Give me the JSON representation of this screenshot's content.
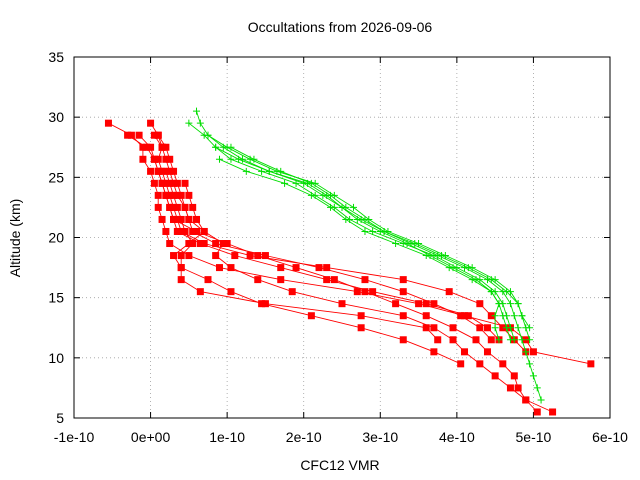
{
  "chart_data": {
    "type": "line",
    "title": "Occultations from 2026-09-06",
    "xlabel": "CFC12 VMR",
    "ylabel": "Altitude (km)",
    "xlim": [
      -1e-10,
      6e-10
    ],
    "ylim": [
      5,
      35
    ],
    "x_ticks": [
      -1e-10,
      0,
      1e-10,
      2e-10,
      3e-10,
      4e-10,
      5e-10,
      6e-10
    ],
    "x_tick_labels": [
      "-1e-10",
      "0e+00",
      "1e-10",
      "2e-10",
      "3e-10",
      "4e-10",
      "5e-10",
      "6e-10"
    ],
    "y_ticks": [
      5,
      10,
      15,
      20,
      25,
      30,
      35
    ],
    "y_tick_labels": [
      "5",
      "10",
      "15",
      "20",
      "25",
      "30",
      "35"
    ],
    "grid": true,
    "legend": "none",
    "colors": {
      "red": "#ff0000",
      "green": "#00dd00",
      "grid": "#a0a0a0"
    },
    "series": [
      {
        "marker": "square",
        "color": "#ff0000",
        "points": [
          [
            -5.5e-11,
            29.5
          ],
          [
            -2.5e-11,
            28.5
          ],
          [
            -1e-11,
            27.5
          ],
          [
            -1e-11,
            26.5
          ],
          [
            0.0,
            25.5
          ],
          [
            5e-12,
            24.5
          ],
          [
            1e-11,
            23.5
          ],
          [
            1e-11,
            22.5
          ],
          [
            1.5e-11,
            21.5
          ],
          [
            2e-11,
            20.5
          ],
          [
            2.5e-11,
            19.5
          ],
          [
            5e-11,
            18.5
          ],
          [
            9e-11,
            17.5
          ],
          [
            1.7e-10,
            16.5
          ],
          [
            2.7e-10,
            15.5
          ],
          [
            3.5e-10,
            14.5
          ],
          [
            4.1e-10,
            13.5
          ],
          [
            4.7e-10,
            12.5
          ],
          [
            4.9e-10,
            11.5
          ],
          [
            5e-10,
            10.5
          ],
          [
            5.75e-10,
            9.5
          ]
        ]
      },
      {
        "marker": "square",
        "color": "#ff0000",
        "points": [
          [
            0.0,
            29.5
          ],
          [
            1e-11,
            28.5
          ],
          [
            1.5e-11,
            27.5
          ],
          [
            1e-11,
            26.5
          ],
          [
            1.5e-11,
            25.5
          ],
          [
            2e-11,
            24.5
          ],
          [
            2.5e-11,
            23.5
          ],
          [
            3e-11,
            22.5
          ],
          [
            3.5e-11,
            21.5
          ],
          [
            4e-11,
            20.5
          ],
          [
            7e-11,
            19.5
          ],
          [
            1.3e-10,
            18.5
          ],
          [
            2.3e-10,
            17.5
          ],
          [
            3.3e-10,
            16.5
          ],
          [
            3.9e-10,
            15.5
          ],
          [
            4.3e-10,
            14.5
          ],
          [
            4.45e-10,
            13.5
          ],
          [
            4.6e-10,
            12.5
          ],
          [
            4.75e-10,
            11.5
          ],
          [
            4.9e-10,
            10.5
          ]
        ]
      },
      {
        "marker": "square",
        "color": "#ff0000",
        "points": [
          [
            -3e-11,
            28.5
          ],
          [
            -5e-12,
            27.5
          ],
          [
            5e-12,
            26.5
          ],
          [
            1e-11,
            25.5
          ],
          [
            1.5e-11,
            24.5
          ],
          [
            2e-11,
            23.5
          ],
          [
            2.5e-11,
            22.5
          ],
          [
            3e-11,
            21.5
          ],
          [
            3.5e-11,
            20.5
          ],
          [
            6.5e-11,
            19.5
          ],
          [
            1.1e-10,
            18.5
          ],
          [
            1.7e-10,
            17.5
          ],
          [
            2.3e-10,
            16.5
          ],
          [
            2.9e-10,
            15.5
          ],
          [
            3.6e-10,
            14.5
          ],
          [
            4.15e-10,
            13.5
          ],
          [
            4.4e-10,
            12.5
          ],
          [
            4.55e-10,
            11.5
          ]
        ]
      },
      {
        "marker": "square",
        "color": "#ff0000",
        "points": [
          [
            5e-12,
            28.5
          ],
          [
            1.5e-11,
            27.5
          ],
          [
            2e-11,
            26.5
          ],
          [
            2.5e-11,
            25.5
          ],
          [
            3e-11,
            24.5
          ],
          [
            3.5e-11,
            23.5
          ],
          [
            4.5e-11,
            22.5
          ],
          [
            5e-11,
            21.5
          ],
          [
            5.5e-11,
            20.5
          ],
          [
            8.5e-11,
            19.5
          ],
          [
            1.5e-10,
            18.5
          ],
          [
            2.2e-10,
            17.5
          ],
          [
            2.8e-10,
            16.5
          ],
          [
            3.3e-10,
            15.5
          ],
          [
            3.7e-10,
            14.5
          ],
          [
            4.05e-10,
            13.5
          ],
          [
            4.3e-10,
            12.5
          ],
          [
            4.45e-10,
            11.5
          ]
        ]
      },
      {
        "marker": "square",
        "color": "#ff0000",
        "points": [
          [
            -1.5e-11,
            28.5
          ],
          [
            0.0,
            27.5
          ],
          [
            5e-12,
            26.5
          ],
          [
            1e-11,
            25.5
          ],
          [
            1.5e-11,
            24.5
          ],
          [
            2e-11,
            23.5
          ],
          [
            2.5e-11,
            22.5
          ],
          [
            3e-11,
            21.5
          ],
          [
            6e-11,
            20.5
          ],
          [
            1e-10,
            19.5
          ],
          [
            1.4e-10,
            18.5
          ],
          [
            1.9e-10,
            17.5
          ],
          [
            2.4e-10,
            16.5
          ],
          [
            2.8e-10,
            15.5
          ],
          [
            3.2e-10,
            14.5
          ],
          [
            3.6e-10,
            13.5
          ],
          [
            3.95e-10,
            12.5
          ],
          [
            4.25e-10,
            11.5
          ],
          [
            4.4e-10,
            10.5
          ],
          [
            4.6e-10,
            9.5
          ],
          [
            4.75e-10,
            8.5
          ],
          [
            4.8e-10,
            7.5
          ],
          [
            4.9e-10,
            6.5
          ],
          [
            5.05e-10,
            5.5
          ]
        ]
      },
      {
        "marker": "square",
        "color": "#ff0000",
        "points": [
          [
            1e-11,
            28.5
          ],
          [
            2e-11,
            27.5
          ],
          [
            2.5e-11,
            26.5
          ],
          [
            3e-11,
            25.5
          ],
          [
            3.5e-11,
            24.5
          ],
          [
            4e-11,
            23.5
          ],
          [
            4.5e-11,
            22.5
          ],
          [
            5e-11,
            21.5
          ],
          [
            7e-11,
            20.5
          ],
          [
            9.5e-11,
            19.5
          ],
          [
            8.5e-11,
            18.5
          ],
          [
            1.05e-10,
            17.5
          ],
          [
            1.4e-10,
            16.5
          ],
          [
            1.85e-10,
            15.5
          ],
          [
            2.5e-10,
            14.5
          ],
          [
            3.3e-10,
            13.5
          ],
          [
            3.7e-10,
            12.5
          ],
          [
            3.95e-10,
            11.5
          ],
          [
            4.1e-10,
            10.5
          ],
          [
            4.3e-10,
            9.5
          ],
          [
            4.5e-10,
            8.5
          ],
          [
            4.7e-10,
            7.5
          ],
          [
            4.9e-10,
            6.5
          ],
          [
            5.25e-10,
            5.5
          ]
        ]
      },
      {
        "marker": "square",
        "color": "#ff0000",
        "points": [
          [
            2e-11,
            25.5
          ],
          [
            2.5e-11,
            24.5
          ],
          [
            3e-11,
            23.5
          ],
          [
            3.5e-11,
            22.5
          ],
          [
            4e-11,
            21.5
          ],
          [
            4.5e-11,
            20.5
          ],
          [
            5.5e-11,
            19.5
          ],
          [
            4e-11,
            18.5
          ],
          [
            4e-11,
            17.5
          ],
          [
            7.5e-11,
            16.5
          ],
          [
            1.05e-10,
            15.5
          ],
          [
            1.45e-10,
            14.5
          ],
          [
            2.1e-10,
            13.5
          ],
          [
            2.75e-10,
            12.5
          ],
          [
            3.3e-10,
            11.5
          ],
          [
            3.7e-10,
            10.5
          ],
          [
            4.05e-10,
            9.5
          ]
        ]
      },
      {
        "marker": "square",
        "color": "#ff0000",
        "points": [
          [
            4.5e-11,
            24.5
          ],
          [
            5e-11,
            23.5
          ],
          [
            5.5e-11,
            22.5
          ],
          [
            6e-11,
            21.5
          ],
          [
            7e-11,
            20.5
          ],
          [
            5e-11,
            19.5
          ],
          [
            3e-11,
            18.5
          ],
          [
            4e-11,
            17.5
          ],
          [
            4e-11,
            16.5
          ],
          [
            6.5e-11,
            15.5
          ],
          [
            1.5e-10,
            14.5
          ],
          [
            2.75e-10,
            13.5
          ],
          [
            3.6e-10,
            12.5
          ],
          [
            3.75e-10,
            11.5
          ]
        ]
      },
      {
        "marker": "plus",
        "color": "#00dd00",
        "points": [
          [
            6e-11,
            30.5
          ],
          [
            6.5e-11,
            29.5
          ],
          [
            7.5e-11,
            28.5
          ],
          [
            9.5e-11,
            27.5
          ],
          [
            1.2e-10,
            26.5
          ],
          [
            1.55e-10,
            25.5
          ],
          [
            2.05e-10,
            24.5
          ],
          [
            2.3e-10,
            23.5
          ],
          [
            2.5e-10,
            22.5
          ],
          [
            2.75e-10,
            21.5
          ],
          [
            3.05e-10,
            20.5
          ],
          [
            3.4e-10,
            19.5
          ],
          [
            3.75e-10,
            18.5
          ],
          [
            4.1e-10,
            17.5
          ],
          [
            4.4e-10,
            16.5
          ],
          [
            4.6e-10,
            15.5
          ],
          [
            4.7e-10,
            14.5
          ],
          [
            4.75e-10,
            13.5
          ],
          [
            4.8e-10,
            12.5
          ],
          [
            4.85e-10,
            11.5
          ],
          [
            4.9e-10,
            10.5
          ],
          [
            4.95e-10,
            9.5
          ],
          [
            5e-10,
            8.5
          ],
          [
            5.05e-10,
            7.5
          ],
          [
            5.1e-10,
            6.5
          ]
        ]
      },
      {
        "marker": "plus",
        "color": "#00dd00",
        "points": [
          [
            5e-11,
            29.5
          ],
          [
            7e-11,
            28.5
          ],
          [
            8.5e-11,
            27.5
          ],
          [
            1.05e-10,
            26.5
          ],
          [
            1.45e-10,
            25.5
          ],
          [
            1.9e-10,
            24.5
          ],
          [
            2.15e-10,
            23.5
          ],
          [
            2.4e-10,
            22.5
          ],
          [
            2.6e-10,
            21.5
          ],
          [
            2.9e-10,
            20.5
          ],
          [
            3.3e-10,
            19.5
          ],
          [
            3.7e-10,
            18.5
          ],
          [
            4e-10,
            17.5
          ],
          [
            4.3e-10,
            16.5
          ],
          [
            4.5e-10,
            15.5
          ],
          [
            4.6e-10,
            14.5
          ],
          [
            4.65e-10,
            13.5
          ],
          [
            4.7e-10,
            12.5
          ],
          [
            4.75e-10,
            11.5
          ]
        ]
      },
      {
        "marker": "plus",
        "color": "#00dd00",
        "points": [
          [
            7.5e-11,
            28.5
          ],
          [
            1e-10,
            27.5
          ],
          [
            1.3e-10,
            26.5
          ],
          [
            1.65e-10,
            25.5
          ],
          [
            2.15e-10,
            24.5
          ],
          [
            2.4e-10,
            23.5
          ],
          [
            2.65e-10,
            22.5
          ],
          [
            2.85e-10,
            21.5
          ],
          [
            3.1e-10,
            20.5
          ],
          [
            3.5e-10,
            19.5
          ],
          [
            3.85e-10,
            18.5
          ],
          [
            4.2e-10,
            17.5
          ],
          [
            4.5e-10,
            16.5
          ],
          [
            4.7e-10,
            15.5
          ],
          [
            4.8e-10,
            14.5
          ],
          [
            4.85e-10,
            13.5
          ],
          [
            4.9e-10,
            12.5
          ],
          [
            4.95e-10,
            11.5
          ]
        ]
      },
      {
        "marker": "plus",
        "color": "#00dd00",
        "points": [
          [
            8.5e-11,
            27.5
          ],
          [
            1.15e-10,
            26.5
          ],
          [
            1.55e-10,
            25.5
          ],
          [
            2e-10,
            24.5
          ],
          [
            2.25e-10,
            23.5
          ],
          [
            2.5e-10,
            22.5
          ],
          [
            2.7e-10,
            21.5
          ],
          [
            3e-10,
            20.5
          ],
          [
            3.35e-10,
            19.5
          ],
          [
            3.65e-10,
            18.5
          ],
          [
            3.95e-10,
            17.5
          ],
          [
            4.25e-10,
            16.5
          ],
          [
            4.45e-10,
            15.5
          ],
          [
            4.55e-10,
            14.5
          ],
          [
            4.6e-10,
            13.5
          ],
          [
            4.65e-10,
            12.5
          ],
          [
            4.7e-10,
            11.5
          ]
        ]
      },
      {
        "marker": "plus",
        "color": "#00dd00",
        "points": [
          [
            9e-11,
            26.5
          ],
          [
            1.25e-10,
            25.5
          ],
          [
            1.75e-10,
            24.5
          ],
          [
            2.1e-10,
            23.5
          ],
          [
            2.35e-10,
            22.5
          ],
          [
            2.55e-10,
            21.5
          ],
          [
            2.8e-10,
            20.5
          ],
          [
            3.2e-10,
            19.5
          ],
          [
            3.6e-10,
            18.5
          ],
          [
            3.9e-10,
            17.5
          ],
          [
            4.2e-10,
            16.5
          ],
          [
            4.45e-10,
            15.5
          ],
          [
            4.55e-10,
            14.5
          ],
          [
            4.5e-10,
            13.5
          ],
          [
            4.5e-10,
            12.5
          ],
          [
            4.55e-10,
            11.5
          ]
        ]
      },
      {
        "marker": "plus",
        "color": "#00dd00",
        "points": [
          [
            1.05e-10,
            27.5
          ],
          [
            1.35e-10,
            26.5
          ],
          [
            1.7e-10,
            25.5
          ],
          [
            2.1e-10,
            24.5
          ],
          [
            2.35e-10,
            23.5
          ],
          [
            2.55e-10,
            22.5
          ],
          [
            2.8e-10,
            21.5
          ],
          [
            3.05e-10,
            20.5
          ],
          [
            3.45e-10,
            19.5
          ],
          [
            3.8e-10,
            18.5
          ],
          [
            4.15e-10,
            17.5
          ],
          [
            4.45e-10,
            16.5
          ],
          [
            4.65e-10,
            15.5
          ],
          [
            4.8e-10,
            14.5
          ],
          [
            4.85e-10,
            13.5
          ],
          [
            4.95e-10,
            12.5
          ]
        ]
      }
    ]
  }
}
